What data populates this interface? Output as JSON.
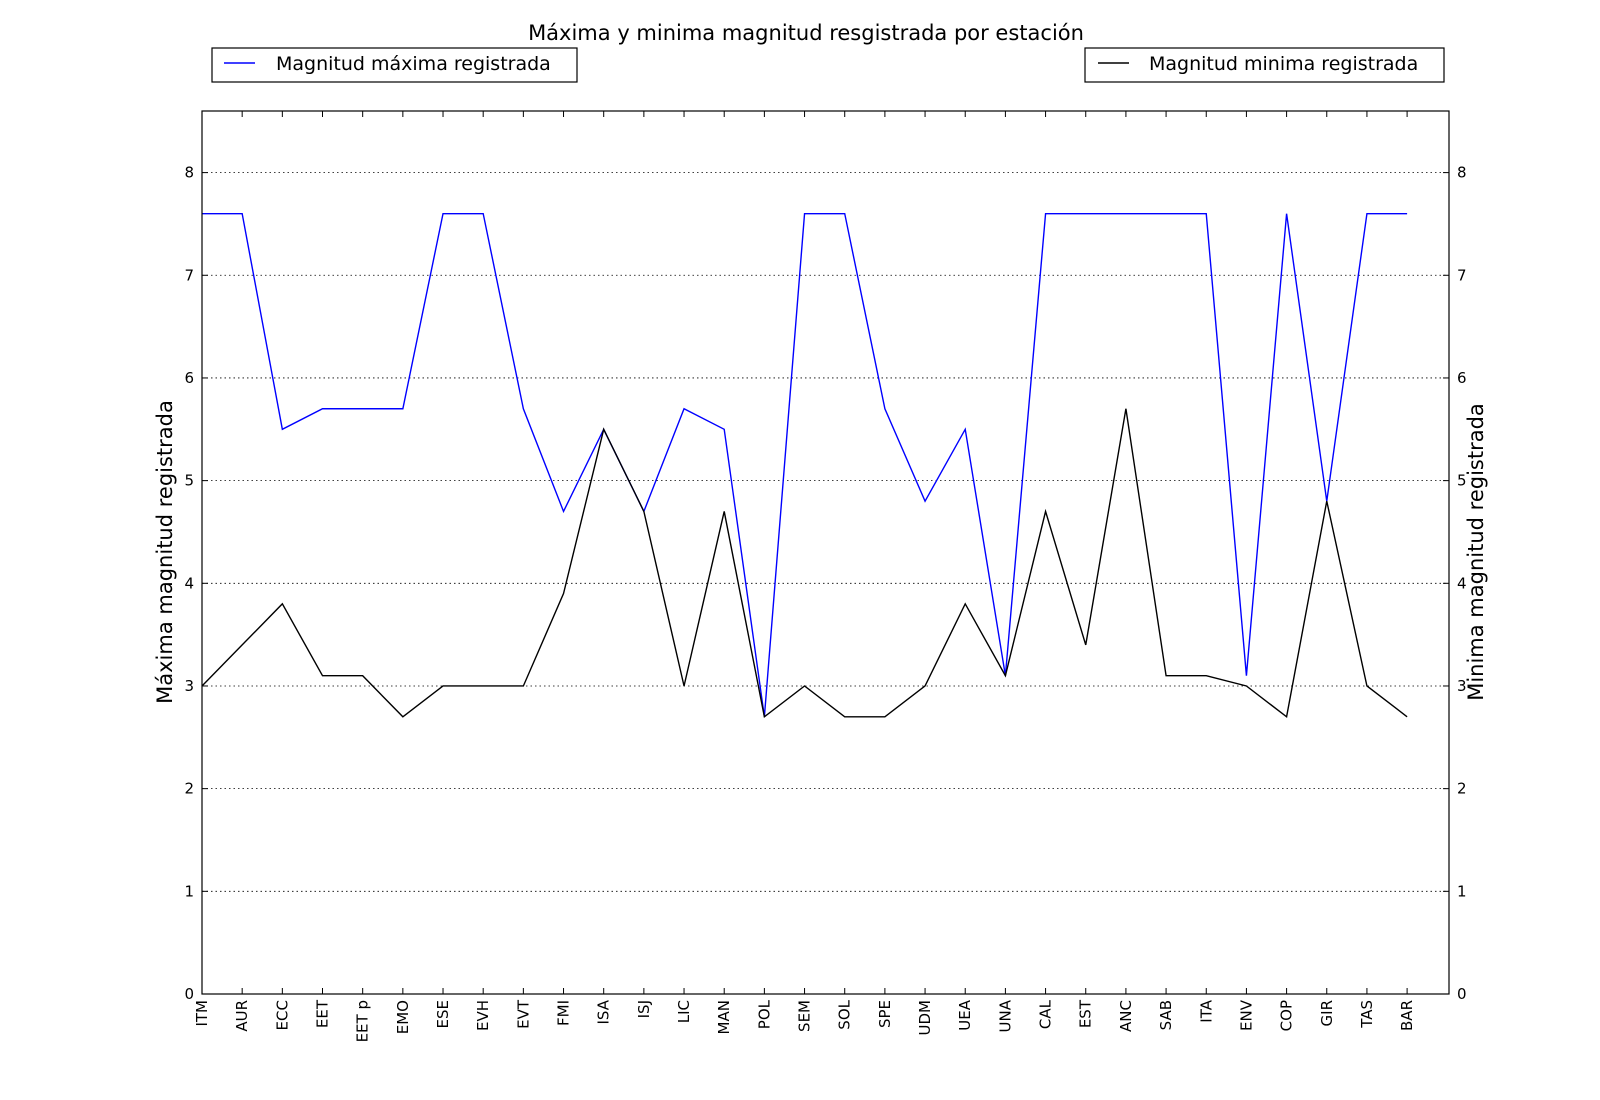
{
  "chart_data": {
    "type": "line",
    "title": "Máxima y minima magnitud resgistrada por estación",
    "ylabel_left": "Máxima magnitud registrada",
    "ylabel_right": "Minima magnitud registrada",
    "xlabel": "",
    "ylim": [
      0,
      8.6
    ],
    "yticks": [
      0,
      1,
      2,
      3,
      4,
      5,
      6,
      7,
      8
    ],
    "grid": "horizontal-dotted",
    "categories": [
      "ITM",
      "AUR",
      "ECC",
      "EET",
      "EET p",
      "EMO",
      "ESE",
      "EVH",
      "EVT",
      "FMI",
      "ISA",
      "ISJ",
      "LIC",
      "MAN",
      "POL",
      "SEM",
      "SOL",
      "SPE",
      "UDM",
      "UEA",
      "UNA",
      "CAL",
      "EST",
      "ANC",
      "SAB",
      "ITA",
      "ENV",
      "COP",
      "GIR",
      "TAS",
      "BAR"
    ],
    "series": [
      {
        "name": "Magnitud máxima registrada",
        "color": "#0000ff",
        "legend_placement": "top-left",
        "values": [
          7.6,
          7.6,
          5.5,
          5.7,
          5.7,
          5.7,
          7.6,
          7.6,
          5.7,
          4.7,
          5.5,
          4.7,
          5.7,
          5.5,
          2.7,
          7.6,
          7.6,
          5.7,
          4.8,
          5.5,
          3.1,
          7.6,
          7.6,
          7.6,
          7.6,
          7.6,
          3.1,
          7.6,
          4.8,
          7.6,
          7.6
        ]
      },
      {
        "name": "Magnitud minima registrada",
        "color": "#000000",
        "legend_placement": "top-right",
        "values": [
          3.0,
          3.4,
          3.8,
          3.1,
          3.1,
          2.7,
          3.0,
          3.0,
          3.0,
          3.9,
          5.5,
          4.7,
          3.0,
          4.7,
          2.7,
          3.0,
          2.7,
          2.7,
          3.0,
          3.8,
          3.1,
          4.7,
          3.4,
          5.7,
          3.1,
          3.1,
          3.0,
          2.7,
          4.8,
          3.0,
          2.7
        ]
      }
    ]
  }
}
